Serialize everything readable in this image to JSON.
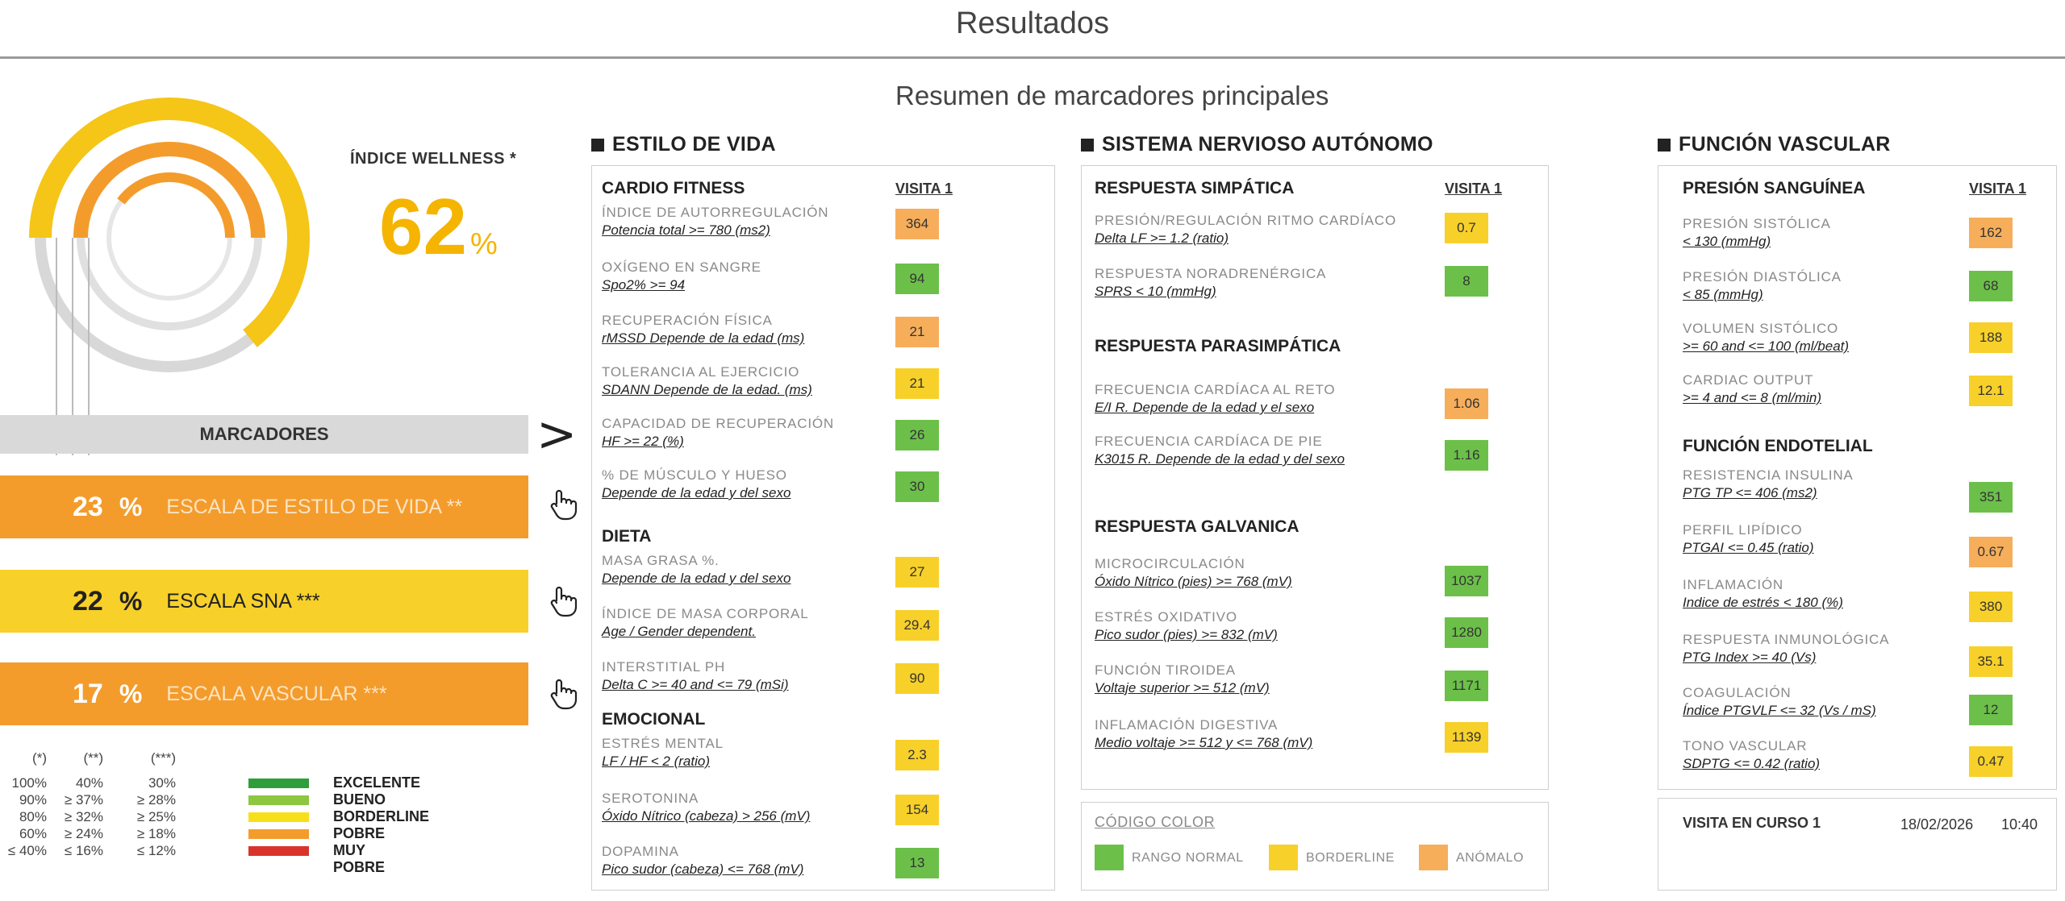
{
  "page_title": "Resultados",
  "summary_title": "Resumen de marcadores principales",
  "wellness": {
    "label": "ÍNDICE WELLNESS *",
    "value": "62",
    "unit": "%"
  },
  "markers_label": "MARCADORES",
  "scales": [
    {
      "value": "23",
      "unit": "%",
      "label": "ESCALA DE ESTILO DE VIDA **"
    },
    {
      "value": "22",
      "unit": "%",
      "label": "ESCALA SNA ***"
    },
    {
      "value": "17",
      "unit": "%",
      "label": "ESCALA VASCULAR ***"
    }
  ],
  "legend": {
    "headers": [
      "(*)",
      "(**)",
      "(***)"
    ],
    "col1": [
      "100%",
      "90%",
      "80%",
      "60%",
      "≤ 40%"
    ],
    "col2": [
      "40%",
      "≥ 37%",
      "≥ 32%",
      "≥ 24%",
      "≤ 16%"
    ],
    "col3": [
      "30%",
      "≥ 28%",
      "≥ 25%",
      "≥ 18%",
      "≤ 12%"
    ],
    "names": [
      "EXCELENTE",
      "BUENO",
      "BORDERLINE",
      "POBRE",
      "MUY POBRE"
    ],
    "colors": [
      "#2e9e3c",
      "#8dc63f",
      "#f7e01a",
      "#f39c2c",
      "#d9342b"
    ]
  },
  "colors": {
    "accent": "#f5b400",
    "normal": "#6cc04a",
    "borderline": "#f7d02a",
    "anomalo": "#f6ae5b"
  },
  "icons": [
    "hand-pointer-icon",
    "chevron-right-icon",
    "square-bullet-icon"
  ],
  "estilo": {
    "title": "ESTILO DE VIDA",
    "groups": [
      "CARDIO FITNESS",
      "DIETA",
      "EMOCIONAL"
    ],
    "visit": "VISITA 1",
    "items": [
      {
        "name": "ÍNDICE DE AUTORREGULACIÓN",
        "sub": "Potencia total >= 780 (ms2)",
        "value": "364",
        "status": "anomalo"
      },
      {
        "name": "OXÍGENO EN SANGRE",
        "sub": "Spo2% >= 94",
        "value": "94",
        "status": "normal"
      },
      {
        "name": "RECUPERACIÓN FÍSICA",
        "sub": "rMSSD Depende de la edad (ms)",
        "value": "21",
        "status": "anomalo"
      },
      {
        "name": "TOLERANCIA AL EJERCICIO",
        "sub": "SDANN Depende de la edad. (ms)",
        "value": "21",
        "status": "borderline"
      },
      {
        "name": "CAPACIDAD DE RECUPERACIÓN",
        "sub": "HF >= 22 (%)",
        "value": "26",
        "status": "normal"
      },
      {
        "name": "% DE MÚSCULO Y HUESO",
        "sub": "Depende de la edad y del sexo",
        "value": "30",
        "status": "normal"
      },
      {
        "name": "MASA GRASA %.",
        "sub": "Depende de la edad y del sexo",
        "value": "27",
        "status": "borderline"
      },
      {
        "name": "ÍNDICE DE MASA CORPORAL",
        "sub": "Age / Gender dependent.",
        "value": "29.4",
        "status": "borderline"
      },
      {
        "name": "INTERSTITIAL PH",
        "sub": "Delta C >= 40 and <= 79 (mSi)",
        "value": "90",
        "status": "borderline"
      },
      {
        "name": "ESTRÉS MENTAL",
        "sub": "LF / HF < 2 (ratio)",
        "value": "2.3",
        "status": "borderline"
      },
      {
        "name": "SEROTONINA",
        "sub": "Óxido Nítrico (cabeza) > 256 (mV)",
        "value": "154",
        "status": "borderline"
      },
      {
        "name": "DOPAMINA",
        "sub": "Pico sudor (cabeza) <= 768 (mV)",
        "value": "13",
        "status": "normal"
      }
    ]
  },
  "sna": {
    "title": "SISTEMA NERVIOSO AUTÓNOMO",
    "groups": [
      "RESPUESTA SIMPÁTICA",
      "RESPUESTA PARASIMPÁTICA",
      "RESPUESTA GALVANICA"
    ],
    "visit": "VISITA 1",
    "items": [
      {
        "name": "PRESIÓN/REGULACIÓN RITMO CARDÍACO",
        "sub": "Delta LF >= 1.2 (ratio)",
        "value": "0.7",
        "status": "borderline"
      },
      {
        "name": "RESPUESTA NORADRENÉRGICA",
        "sub": "SPRS < 10 (mmHg)",
        "value": "8",
        "status": "normal"
      },
      {
        "name": "FRECUENCIA CARDÍACA AL RETO",
        "sub": "E/I R. Depende de la edad y el sexo",
        "value": "1.06",
        "status": "anomalo"
      },
      {
        "name": "FRECUENCIA CARDÍACA DE PIE",
        "sub": "K3015 R. Depende de la edad y del sexo",
        "value": "1.16",
        "status": "normal"
      },
      {
        "name": "MICROCIRCULACIÓN",
        "sub": "Óxido Nítrico (pies) >= 768 (mV)",
        "value": "1037",
        "status": "normal"
      },
      {
        "name": "ESTRÉS OXIDATIVO",
        "sub": "Pico sudor (pies) >= 832 (mV)",
        "value": "1280",
        "status": "normal"
      },
      {
        "name": "FUNCIÓN TIROIDEA",
        "sub": "Voltaje superior >= 512 (mV)",
        "value": "1171",
        "status": "normal"
      },
      {
        "name": "INFLAMACIÓN DIGESTIVA",
        "sub": "Medio voltaje >= 512 y <= 768 (mV)",
        "value": "1139",
        "status": "borderline"
      }
    ]
  },
  "vascular": {
    "title": "FUNCIÓN VASCULAR",
    "groups": [
      "PRESIÓN SANGUÍNEA",
      "FUNCIÓN ENDOTELIAL"
    ],
    "visit": "VISITA 1",
    "items": [
      {
        "name": "PRESIÓN SISTÓLICA",
        "sub": "< 130 (mmHg)",
        "value": "162",
        "status": "anomalo"
      },
      {
        "name": "PRESIÓN DIASTÓLICA",
        "sub": "< 85 (mmHg)",
        "value": "68",
        "status": "normal"
      },
      {
        "name": "VOLUMEN SISTÓLICO",
        "sub": ">= 60 and <= 100 (ml/beat)",
        "value": "188",
        "status": "borderline"
      },
      {
        "name": "CARDIAC OUTPUT",
        "sub": ">= 4 and <= 8 (ml/min)",
        "value": "12.1",
        "status": "borderline"
      },
      {
        "name": "RESISTENCIA INSULINA",
        "sub": "PTG TP <= 406 (ms2)",
        "value": "351",
        "status": "normal"
      },
      {
        "name": "PERFIL LIPÍDICO",
        "sub": "PTGAI <= 0.45 (ratio)",
        "value": "0.67",
        "status": "anomalo"
      },
      {
        "name": "INFLAMACIÓN",
        "sub": "Indice de estrés < 180 (%)",
        "value": "380",
        "status": "borderline"
      },
      {
        "name": "RESPUESTA INMUNOLÓGICA",
        "sub": "PTG Index >= 40 (Vs)",
        "value": "35.1",
        "status": "borderline"
      },
      {
        "name": "COAGULACIÓN",
        "sub": "Índice PTGVLF <= 32 (Vs / mS)",
        "value": "12",
        "status": "normal"
      },
      {
        "name": "TONO VASCULAR",
        "sub": "SDPTG <= 0.42 (ratio)",
        "value": "0.47",
        "status": "borderline"
      }
    ]
  },
  "color_code": {
    "title": "CÓDIGO COLOR",
    "labels": [
      "RANGO NORMAL",
      "BORDERLINE",
      "ANÓMALO"
    ]
  },
  "current_visit": {
    "label": "VISITA EN CURSO 1",
    "date": "18/02/2026",
    "time": "10:40"
  }
}
